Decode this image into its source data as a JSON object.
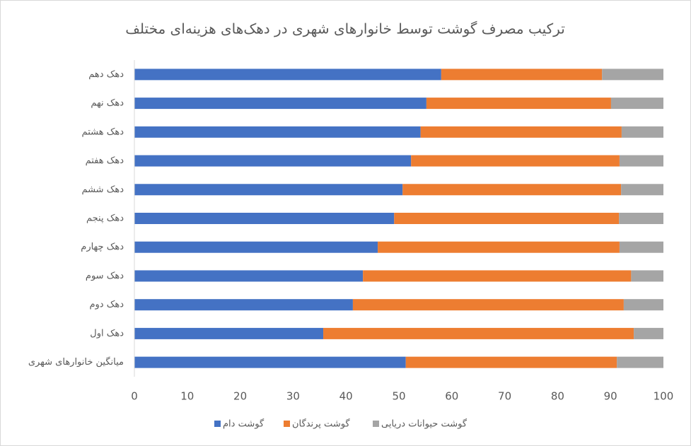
{
  "chart_data": {
    "type": "stacked-bar-horizontal",
    "title": "ترکیب مصرف گوشت توسط خانوارهای شهری در دهک‌های هزینه‌ای مختلف",
    "categories": [
      "دهک دهم",
      "دهک نهم",
      "دهک هشتم",
      "دهک هفتم",
      "دهک ششم",
      "دهک پنجم",
      "دهک چهارم",
      "دهک سوم",
      "دهک دوم",
      "دهک اول",
      "میانگین خانوارهای شهری"
    ],
    "series": [
      {
        "name": "گوشت دام",
        "color": "#4472c4",
        "values": [
          58.0,
          55.2,
          54.1,
          52.3,
          50.7,
          49.1,
          46.0,
          43.2,
          41.3,
          35.7,
          51.3
        ]
      },
      {
        "name": "گوشت پرندگان",
        "color": "#ed7d31",
        "values": [
          30.4,
          34.9,
          38.0,
          39.4,
          41.3,
          42.5,
          45.7,
          50.7,
          51.2,
          58.7,
          39.9
        ]
      },
      {
        "name": "گوشت حیوانات دریایی",
        "color": "#a5a5a5",
        "values": [
          11.6,
          9.9,
          7.9,
          8.3,
          8.0,
          8.4,
          8.3,
          6.1,
          7.5,
          5.6,
          8.8
        ]
      }
    ],
    "xlim": [
      0,
      100
    ],
    "xticks": [
      0,
      10,
      20,
      30,
      40,
      50,
      60,
      70,
      80,
      90,
      100
    ],
    "grid": false,
    "legend": "bottom"
  }
}
